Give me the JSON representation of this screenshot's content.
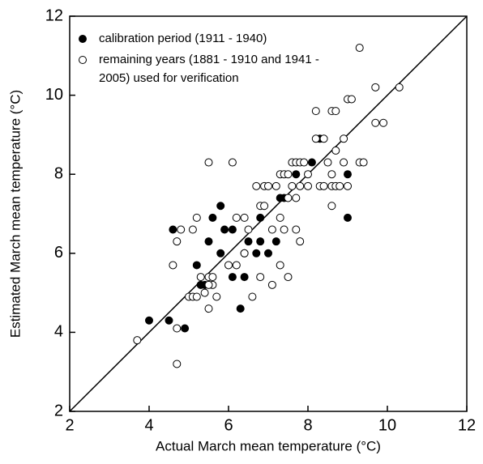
{
  "chart_data": {
    "type": "scatter",
    "xlabel": "Actual March mean temperature (°C)",
    "ylabel": "Estimated March mean temperature (°C)",
    "xlim": [
      2,
      12
    ],
    "ylim": [
      2,
      12
    ],
    "xticks": [
      2,
      4,
      6,
      8,
      10,
      12
    ],
    "yticks": [
      2,
      4,
      6,
      8,
      10,
      12
    ],
    "identity_line": true,
    "legend": "upper left",
    "series": [
      {
        "name": "calibration period (1911 - 1940)",
        "color": "#000000",
        "marker": "filled",
        "x": [
          4.0,
          4.5,
          4.9,
          4.6,
          5.2,
          5.3,
          5.4,
          5.5,
          5.6,
          5.8,
          5.8,
          5.9,
          6.1,
          6.1,
          6.3,
          6.4,
          6.4,
          6.5,
          6.7,
          6.8,
          6.8,
          7.0,
          7.2,
          7.3,
          7.4,
          7.7,
          8.1,
          8.3,
          9.0,
          9.0
        ],
        "y": [
          4.3,
          4.3,
          4.1,
          6.6,
          5.7,
          5.2,
          5.2,
          6.3,
          6.9,
          6.0,
          7.2,
          6.6,
          6.6,
          5.4,
          4.6,
          5.4,
          6.0,
          6.3,
          6.0,
          6.3,
          6.9,
          6.0,
          6.3,
          7.4,
          7.4,
          8.0,
          8.3,
          8.9,
          8.0,
          6.9
        ]
      },
      {
        "name": "remaining years (1881 - 1910 and 1941 - 2005) used for verification",
        "color": "#000000",
        "marker": "open",
        "x": [
          3.7,
          4.6,
          4.7,
          4.7,
          4.7,
          4.8,
          5.0,
          5.1,
          5.1,
          5.2,
          5.2,
          5.3,
          5.4,
          5.5,
          5.5,
          5.5,
          5.6,
          5.6,
          5.7,
          5.5,
          6.1,
          6.2,
          6.2,
          6.4,
          6.4,
          6.5,
          6.6,
          6.7,
          6.8,
          6.8,
          6.9,
          6.9,
          7.0,
          7.1,
          7.1,
          7.2,
          7.3,
          7.3,
          7.3,
          7.4,
          7.4,
          7.5,
          7.5,
          7.5,
          7.6,
          7.6,
          7.7,
          7.7,
          7.7,
          7.8,
          7.8,
          7.8,
          7.9,
          8.0,
          8.0,
          8.2,
          8.2,
          8.3,
          8.4,
          8.4,
          8.5,
          8.6,
          8.6,
          8.6,
          8.6,
          8.7,
          8.7,
          8.7,
          8.8,
          8.9,
          8.9,
          9.0,
          9.1,
          9.0,
          9.3,
          9.3,
          9.4,
          9.7,
          9.7,
          9.9,
          10.3,
          6.0
        ],
        "y": [
          3.8,
          5.7,
          4.1,
          3.2,
          6.3,
          6.6,
          4.9,
          4.9,
          6.6,
          6.9,
          4.9,
          5.4,
          5.0,
          4.6,
          5.4,
          8.3,
          5.2,
          5.4,
          4.9,
          5.2,
          8.3,
          6.9,
          5.7,
          6.9,
          6.0,
          6.6,
          4.9,
          7.7,
          7.2,
          5.4,
          7.2,
          7.7,
          7.7,
          5.2,
          6.6,
          7.7,
          8.0,
          6.9,
          5.7,
          8.0,
          6.6,
          8.0,
          5.4,
          7.4,
          7.7,
          8.3,
          8.3,
          7.4,
          6.6,
          8.3,
          7.7,
          6.3,
          8.3,
          7.7,
          8.0,
          8.9,
          9.6,
          7.7,
          8.9,
          7.7,
          8.3,
          7.7,
          8.0,
          7.2,
          9.6,
          9.6,
          7.7,
          8.6,
          7.7,
          8.3,
          8.9,
          9.9,
          9.9,
          7.7,
          11.2,
          8.3,
          8.3,
          9.3,
          10.2,
          9.3,
          10.2,
          5.7
        ]
      }
    ]
  }
}
